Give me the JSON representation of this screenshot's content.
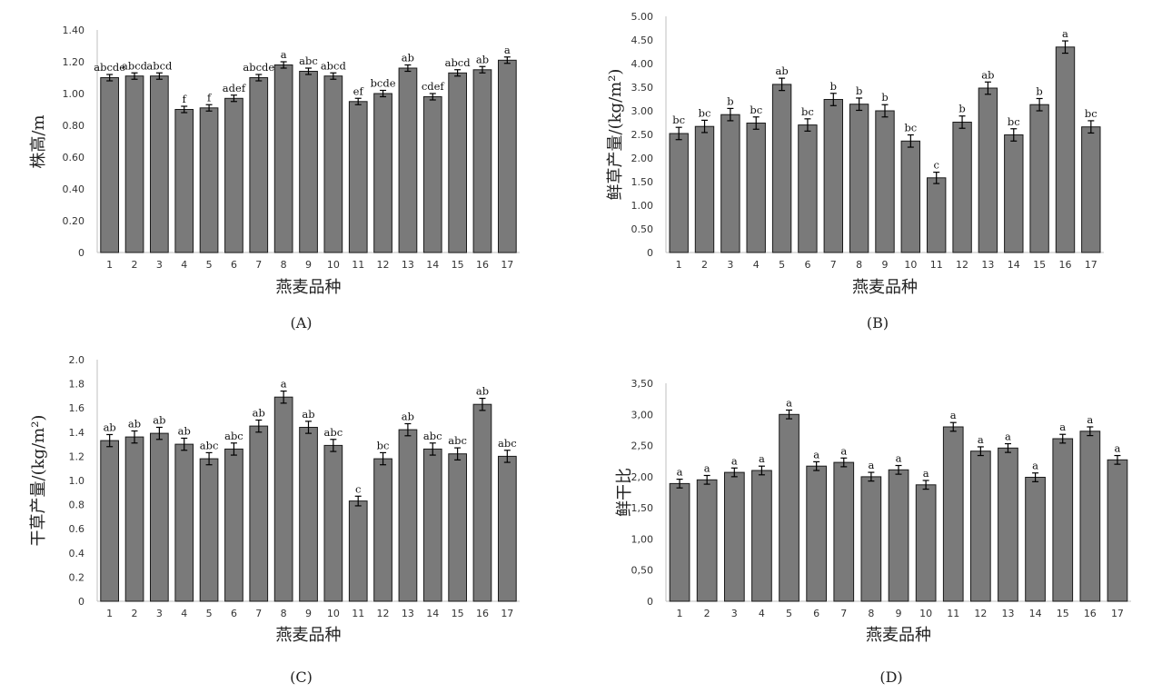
{
  "chart_data": [
    {
      "type": "bar",
      "panel": "(A)",
      "ylabel": "株高/m",
      "xlabel": "燕麦品种",
      "ylim": [
        0,
        1.4
      ],
      "yticks": [
        "0",
        "0.20",
        "0.40",
        "0.60",
        "0.80",
        "1.00",
        "1.20",
        "1.40"
      ],
      "categories": [
        "1",
        "2",
        "3",
        "4",
        "5",
        "6",
        "7",
        "8",
        "9",
        "10",
        "11",
        "12",
        "13",
        "14",
        "15",
        "16",
        "17"
      ],
      "values": [
        1.1,
        1.11,
        1.11,
        0.9,
        0.91,
        0.97,
        1.1,
        1.18,
        1.14,
        1.11,
        0.95,
        1.0,
        1.16,
        0.98,
        1.13,
        1.15,
        1.21
      ],
      "errors": [
        0.02,
        0.02,
        0.02,
        0.02,
        0.02,
        0.02,
        0.02,
        0.02,
        0.02,
        0.02,
        0.02,
        0.02,
        0.02,
        0.02,
        0.02,
        0.02,
        0.02
      ],
      "labels": [
        "abcde",
        "abcd",
        "abcd",
        "f",
        "f",
        "adef",
        "abcde",
        "a",
        "abc",
        "abcd",
        "ef",
        "bcde",
        "ab",
        "cdef",
        "abcd",
        "ab",
        "a"
      ]
    },
    {
      "type": "bar",
      "panel": "(B)",
      "ylabel": "鲜草产量/(kg/m²)",
      "xlabel": "燕麦品种",
      "ylim": [
        0,
        5
      ],
      "yticks": [
        "0",
        "0.50",
        "1.00",
        "1.50",
        "2.00",
        "2.50",
        "3.00",
        "3.50",
        "4.00",
        "4.50",
        "5.00"
      ],
      "categories": [
        "1",
        "2",
        "3",
        "4",
        "5",
        "6",
        "7",
        "8",
        "9",
        "10",
        "11",
        "12",
        "13",
        "14",
        "15",
        "16",
        "17"
      ],
      "values": [
        2.52,
        2.67,
        2.92,
        2.74,
        3.56,
        2.7,
        3.24,
        3.14,
        3.0,
        2.36,
        1.58,
        2.76,
        3.48,
        2.49,
        3.13,
        4.35,
        2.66
      ],
      "errors": [
        0.13,
        0.13,
        0.13,
        0.13,
        0.13,
        0.13,
        0.13,
        0.13,
        0.13,
        0.13,
        0.12,
        0.13,
        0.13,
        0.13,
        0.13,
        0.13,
        0.13
      ],
      "labels": [
        "bc",
        "bc",
        "b",
        "bc",
        "ab",
        "bc",
        "b",
        "b",
        "b",
        "bc",
        "c",
        "b",
        "ab",
        "bc",
        "b",
        "a",
        "bc"
      ]
    },
    {
      "type": "bar",
      "panel": "(C)",
      "ylabel": "干草产量/(kg/m²)",
      "xlabel": "燕麦品种",
      "ylim": [
        0,
        2
      ],
      "yticks": [
        "0",
        "0.2",
        "0.4",
        "0.6",
        "0.8",
        "1.0",
        "1.2",
        "1.4",
        "1.6",
        "1.8",
        "2.0"
      ],
      "categories": [
        "1",
        "2",
        "3",
        "4",
        "5",
        "6",
        "7",
        "8",
        "9",
        "10",
        "11",
        "12",
        "13",
        "14",
        "15",
        "16",
        "17"
      ],
      "values": [
        1.33,
        1.36,
        1.39,
        1.3,
        1.18,
        1.26,
        1.45,
        1.69,
        1.44,
        1.29,
        0.83,
        1.18,
        1.42,
        1.26,
        1.22,
        1.63,
        1.2
      ],
      "errors": [
        0.05,
        0.05,
        0.05,
        0.05,
        0.05,
        0.05,
        0.05,
        0.05,
        0.05,
        0.05,
        0.04,
        0.05,
        0.05,
        0.05,
        0.05,
        0.05,
        0.05
      ],
      "labels": [
        "ab",
        "ab",
        "ab",
        "ab",
        "abc",
        "abc",
        "ab",
        "a",
        "ab",
        "abc",
        "c",
        "bc",
        "ab",
        "abc",
        "abc",
        "ab",
        "abc"
      ]
    },
    {
      "type": "bar",
      "panel": "(D)",
      "ylabel": "鲜干比",
      "xlabel": "燕麦品种",
      "ylim": [
        0,
        3.5
      ],
      "yticks": [
        "0",
        "0,50",
        "1,00",
        "1,50",
        "2,00",
        "2,50",
        "3,00",
        "3,50"
      ],
      "categories": [
        "1",
        "2",
        "3",
        "4",
        "5",
        "6",
        "7",
        "8",
        "9",
        "10",
        "11",
        "12",
        "13",
        "14",
        "15",
        "16",
        "17"
      ],
      "values": [
        1.89,
        1.95,
        2.07,
        2.1,
        3.0,
        2.17,
        2.23,
        2.0,
        2.11,
        1.87,
        2.8,
        2.41,
        2.46,
        1.99,
        2.61,
        2.73,
        2.27
      ],
      "errors": [
        0.07,
        0.07,
        0.07,
        0.07,
        0.07,
        0.07,
        0.07,
        0.07,
        0.07,
        0.07,
        0.07,
        0.07,
        0.07,
        0.07,
        0.07,
        0.07,
        0.07
      ],
      "labels": [
        "a",
        "a",
        "a",
        "a",
        "a",
        "a",
        "a",
        "a",
        "a",
        "a",
        "a",
        "a",
        "a",
        "a",
        "a",
        "a",
        "a"
      ]
    }
  ]
}
